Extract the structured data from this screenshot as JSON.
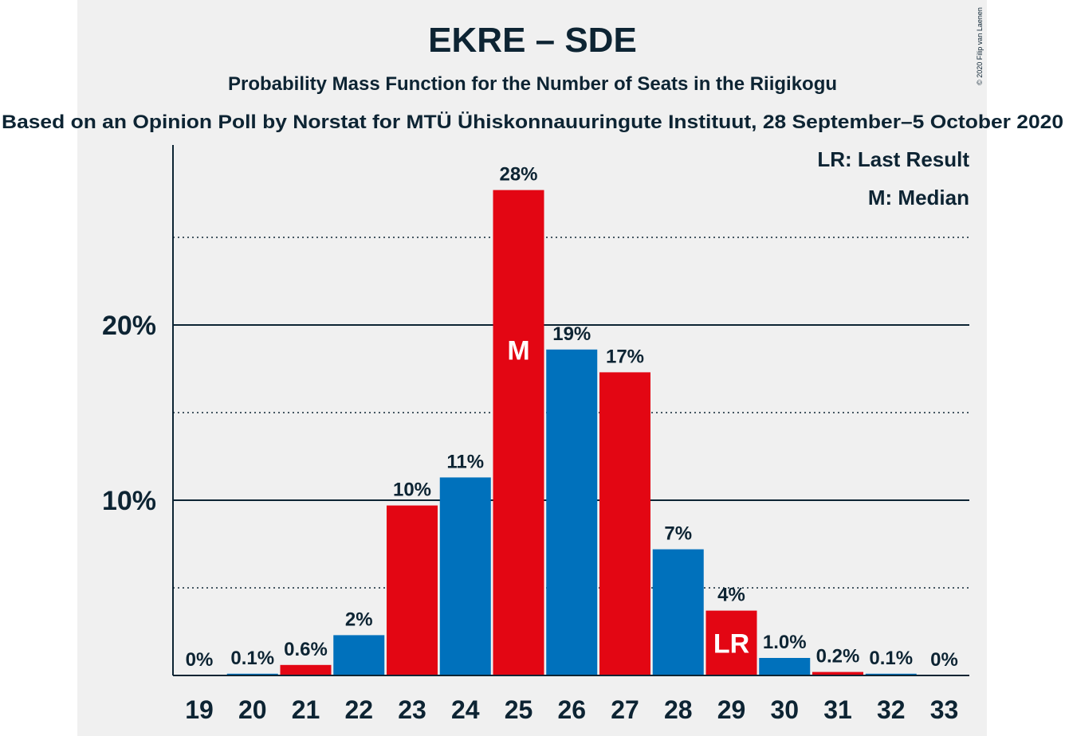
{
  "chart_data": {
    "type": "bar",
    "title": "EKRE – SDE",
    "subtitle": "Probability Mass Function for the Number of Seats in the Riigikogu",
    "subtitle2": "Based on an Opinion Poll by Norstat for MTÜ Ühiskonnauuringute Instituut, 28 September–5 October 2020",
    "copyright": "© 2020 Filip van Laenen",
    "categories": [
      "19",
      "20",
      "21",
      "22",
      "23",
      "24",
      "25",
      "26",
      "27",
      "28",
      "29",
      "30",
      "31",
      "32",
      "33"
    ],
    "values": [
      0,
      0.1,
      0.6,
      2.3,
      9.7,
      11.3,
      27.7,
      18.6,
      17.3,
      7.2,
      3.7,
      1.0,
      0.2,
      0.1,
      0
    ],
    "labels": [
      "0%",
      "0.1%",
      "0.6%",
      "2%",
      "10%",
      "11%",
      "28%",
      "19%",
      "17%",
      "7%",
      "4%",
      "1.0%",
      "0.2%",
      "0.1%",
      "0%"
    ],
    "colors": [
      "#e30613",
      "#0071bc",
      "#e30613",
      "#0071bc",
      "#e30613",
      "#0071bc",
      "#e30613",
      "#0071bc",
      "#e30613",
      "#0071bc",
      "#e30613",
      "#0071bc",
      "#e30613",
      "#0071bc",
      "#e30613"
    ],
    "ylim": [
      0,
      30
    ],
    "yticks": [
      {
        "value": 10,
        "label": "10%"
      },
      {
        "value": 20,
        "label": "20%"
      }
    ],
    "minor_gridlines": [
      5,
      15,
      25
    ],
    "median_seat": "25",
    "median_marker": "M",
    "last_result_seat": "29",
    "last_result_marker": "LR",
    "legend": [
      "LR: Last Result",
      "M: Median"
    ],
    "legend_position": "top-right",
    "grid": true
  }
}
